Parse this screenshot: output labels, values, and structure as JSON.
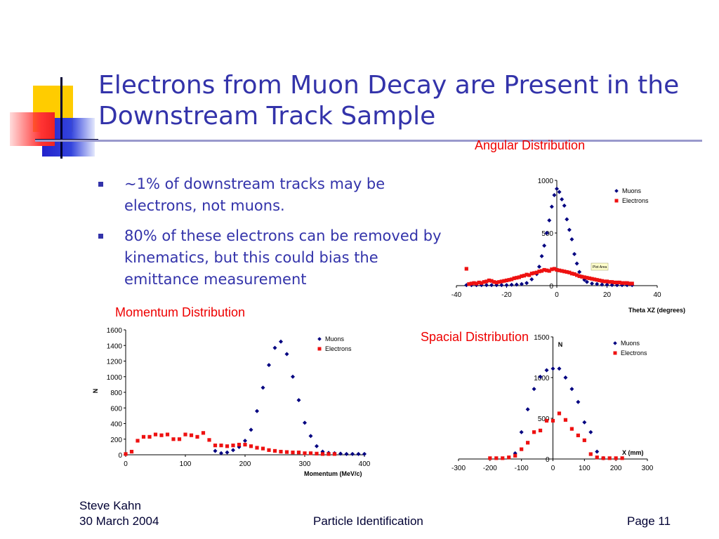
{
  "slide": {
    "title_line1": "Electrons from Muon Decay are Present in the",
    "title_line2": "Downstream Track Sample",
    "bullets": [
      "~1% of downstream tracks may be electrons, not muons.",
      "80% of these electrons can be removed by kinematics, but this could bias the emittance measurement"
    ],
    "captions": {
      "angular": "Angular Distribution",
      "momentum": "Momentum Distribution",
      "spacial": "Spacial Distribution"
    },
    "plot_area_tag": "Plot Area"
  },
  "footer": {
    "author": "Steve Kahn",
    "date": "30 March 2004",
    "center": "Particle Identification",
    "page": "Page 11"
  },
  "colors": {
    "muons": "#000080",
    "electrons": "#ee1111",
    "title": "#3333aa",
    "caption": "#ee0000"
  },
  "chart_data": [
    {
      "id": "angular",
      "type": "scatter",
      "xlabel": "Theta XZ (degrees)",
      "ylabel": "",
      "xlim": [
        -40,
        40
      ],
      "ylim": [
        0,
        1000
      ],
      "xticks": [
        -40,
        -20,
        0,
        20,
        40
      ],
      "yticks": [
        0,
        500,
        1000
      ],
      "legend": "top-right",
      "series": [
        {
          "name": "Muons",
          "marker": "diamond",
          "color": "#000080",
          "points": [
            [
              -36,
              5
            ],
            [
              -34,
              5
            ],
            [
              -32,
              5
            ],
            [
              -30,
              5
            ],
            [
              -28,
              5
            ],
            [
              -26,
              5
            ],
            [
              -24,
              5
            ],
            [
              -22,
              5
            ],
            [
              -20,
              5
            ],
            [
              -18,
              8
            ],
            [
              -16,
              10
            ],
            [
              -14,
              15
            ],
            [
              -12,
              25
            ],
            [
              -10,
              60
            ],
            [
              -8,
              110
            ],
            [
              -7,
              180
            ],
            [
              -6,
              280
            ],
            [
              -5,
              380
            ],
            [
              -4,
              500
            ],
            [
              -3,
              620
            ],
            [
              -2,
              750
            ],
            [
              -1,
              860
            ],
            [
              0,
              920
            ],
            [
              1,
              890
            ],
            [
              2,
              820
            ],
            [
              3,
              760
            ],
            [
              4,
              630
            ],
            [
              5,
              530
            ],
            [
              6,
              440
            ],
            [
              7,
              300
            ],
            [
              8,
              210
            ],
            [
              9,
              130
            ],
            [
              10,
              85
            ],
            [
              11,
              55
            ],
            [
              12,
              35
            ],
            [
              14,
              20
            ],
            [
              16,
              15
            ],
            [
              18,
              10
            ],
            [
              20,
              8
            ],
            [
              22,
              6
            ],
            [
              24,
              5
            ],
            [
              26,
              5
            ],
            [
              28,
              5
            ],
            [
              30,
              5
            ]
          ]
        },
        {
          "name": "Electrons",
          "marker": "square",
          "color": "#ee1111",
          "points": [
            [
              -36,
              160
            ],
            [
              -35,
              15
            ],
            [
              -34,
              20
            ],
            [
              -33,
              25
            ],
            [
              -32,
              20
            ],
            [
              -31,
              30
            ],
            [
              -30,
              25
            ],
            [
              -29,
              35
            ],
            [
              -28,
              40
            ],
            [
              -27,
              50
            ],
            [
              -26,
              45
            ],
            [
              -25,
              35
            ],
            [
              -24,
              30
            ],
            [
              -23,
              35
            ],
            [
              -22,
              40
            ],
            [
              -21,
              45
            ],
            [
              -20,
              50
            ],
            [
              -19,
              55
            ],
            [
              -18,
              60
            ],
            [
              -17,
              70
            ],
            [
              -16,
              75
            ],
            [
              -15,
              80
            ],
            [
              -14,
              90
            ],
            [
              -13,
              95
            ],
            [
              -12,
              105
            ],
            [
              -11,
              100
            ],
            [
              -10,
              115
            ],
            [
              -9,
              120
            ],
            [
              -8,
              125
            ],
            [
              -7,
              135
            ],
            [
              -6,
              140
            ],
            [
              -5,
              150
            ],
            [
              -4,
              145
            ],
            [
              -3,
              140
            ],
            [
              -2,
              155
            ],
            [
              -1,
              160
            ],
            [
              0,
              150
            ],
            [
              1,
              145
            ],
            [
              2,
              140
            ],
            [
              3,
              135
            ],
            [
              4,
              130
            ],
            [
              5,
              125
            ],
            [
              6,
              115
            ],
            [
              7,
              110
            ],
            [
              8,
              100
            ],
            [
              9,
              90
            ],
            [
              10,
              85
            ],
            [
              11,
              80
            ],
            [
              12,
              75
            ],
            [
              13,
              70
            ],
            [
              14,
              65
            ],
            [
              15,
              60
            ],
            [
              16,
              55
            ],
            [
              17,
              50
            ],
            [
              18,
              45
            ],
            [
              19,
              40
            ],
            [
              20,
              40
            ],
            [
              21,
              35
            ],
            [
              22,
              35
            ],
            [
              23,
              30
            ],
            [
              24,
              30
            ],
            [
              25,
              30
            ],
            [
              26,
              25
            ],
            [
              27,
              25
            ],
            [
              28,
              25
            ],
            [
              29,
              20
            ],
            [
              30,
              20
            ]
          ]
        }
      ]
    },
    {
      "id": "momentum",
      "type": "scatter",
      "xlabel": "Momentum (MeV/c)",
      "ylabel": "N",
      "xlim": [
        0,
        400
      ],
      "ylim": [
        0,
        1600
      ],
      "xticks": [
        0,
        100,
        200,
        300,
        400
      ],
      "yticks": [
        0,
        200,
        400,
        600,
        800,
        1000,
        1200,
        1400,
        1600
      ],
      "legend": "top-right",
      "series": [
        {
          "name": "Muons",
          "marker": "diamond",
          "color": "#000080",
          "points": [
            [
              150,
              50
            ],
            [
              160,
              20
            ],
            [
              170,
              30
            ],
            [
              180,
              60
            ],
            [
              190,
              100
            ],
            [
              200,
              180
            ],
            [
              210,
              320
            ],
            [
              220,
              560
            ],
            [
              230,
              860
            ],
            [
              240,
              1150
            ],
            [
              250,
              1370
            ],
            [
              260,
              1450
            ],
            [
              270,
              1290
            ],
            [
              280,
              1000
            ],
            [
              290,
              700
            ],
            [
              300,
              410
            ],
            [
              310,
              240
            ],
            [
              320,
              110
            ],
            [
              330,
              40
            ],
            [
              340,
              25
            ],
            [
              350,
              20
            ],
            [
              360,
              15
            ],
            [
              370,
              10
            ],
            [
              380,
              10
            ],
            [
              390,
              10
            ],
            [
              400,
              10
            ]
          ]
        },
        {
          "name": "Electrons",
          "marker": "square",
          "color": "#ee1111",
          "points": [
            [
              0,
              10
            ],
            [
              10,
              40
            ],
            [
              20,
              180
            ],
            [
              30,
              230
            ],
            [
              40,
              230
            ],
            [
              50,
              260
            ],
            [
              60,
              250
            ],
            [
              70,
              260
            ],
            [
              80,
              200
            ],
            [
              90,
              200
            ],
            [
              100,
              260
            ],
            [
              110,
              250
            ],
            [
              120,
              230
            ],
            [
              130,
              280
            ],
            [
              140,
              190
            ],
            [
              150,
              120
            ],
            [
              160,
              120
            ],
            [
              170,
              110
            ],
            [
              180,
              120
            ],
            [
              190,
              130
            ],
            [
              200,
              130
            ],
            [
              210,
              110
            ],
            [
              220,
              90
            ],
            [
              230,
              80
            ],
            [
              240,
              60
            ],
            [
              250,
              50
            ],
            [
              260,
              40
            ],
            [
              270,
              35
            ],
            [
              280,
              30
            ],
            [
              290,
              30
            ],
            [
              300,
              20
            ],
            [
              310,
              20
            ],
            [
              320,
              15
            ],
            [
              330,
              10
            ],
            [
              340,
              10
            ],
            [
              350,
              10
            ]
          ]
        }
      ]
    },
    {
      "id": "spacial",
      "type": "scatter",
      "xlabel": "X (mm)",
      "ylabel": "N",
      "xlim": [
        -300,
        300
      ],
      "ylim": [
        0,
        1500
      ],
      "xticks": [
        -300,
        -200,
        -100,
        0,
        100,
        200,
        300
      ],
      "yticks": [
        0,
        500,
        1000,
        1500
      ],
      "legend": "top-right",
      "series": [
        {
          "name": "Muons",
          "marker": "diamond",
          "color": "#000080",
          "points": [
            [
              -120,
              70
            ],
            [
              -100,
              330
            ],
            [
              -80,
              610
            ],
            [
              -60,
              860
            ],
            [
              -40,
              1010
            ],
            [
              -20,
              1090
            ],
            [
              0,
              1110
            ],
            [
              20,
              1110
            ],
            [
              40,
              1000
            ],
            [
              60,
              860
            ],
            [
              80,
              700
            ],
            [
              100,
              450
            ],
            [
              120,
              330
            ],
            [
              140,
              90
            ],
            [
              160,
              10
            ]
          ]
        },
        {
          "name": "Electrons",
          "marker": "square",
          "color": "#ee1111",
          "points": [
            [
              -200,
              10
            ],
            [
              -180,
              10
            ],
            [
              -160,
              10
            ],
            [
              -140,
              20
            ],
            [
              -120,
              40
            ],
            [
              -100,
              120
            ],
            [
              -80,
              200
            ],
            [
              -60,
              330
            ],
            [
              -40,
              350
            ],
            [
              -20,
              470
            ],
            [
              0,
              470
            ],
            [
              20,
              560
            ],
            [
              40,
              480
            ],
            [
              60,
              370
            ],
            [
              80,
              290
            ],
            [
              100,
              230
            ],
            [
              120,
              60
            ],
            [
              140,
              20
            ],
            [
              160,
              10
            ],
            [
              180,
              10
            ],
            [
              200,
              10
            ],
            [
              220,
              10
            ]
          ]
        }
      ]
    }
  ]
}
